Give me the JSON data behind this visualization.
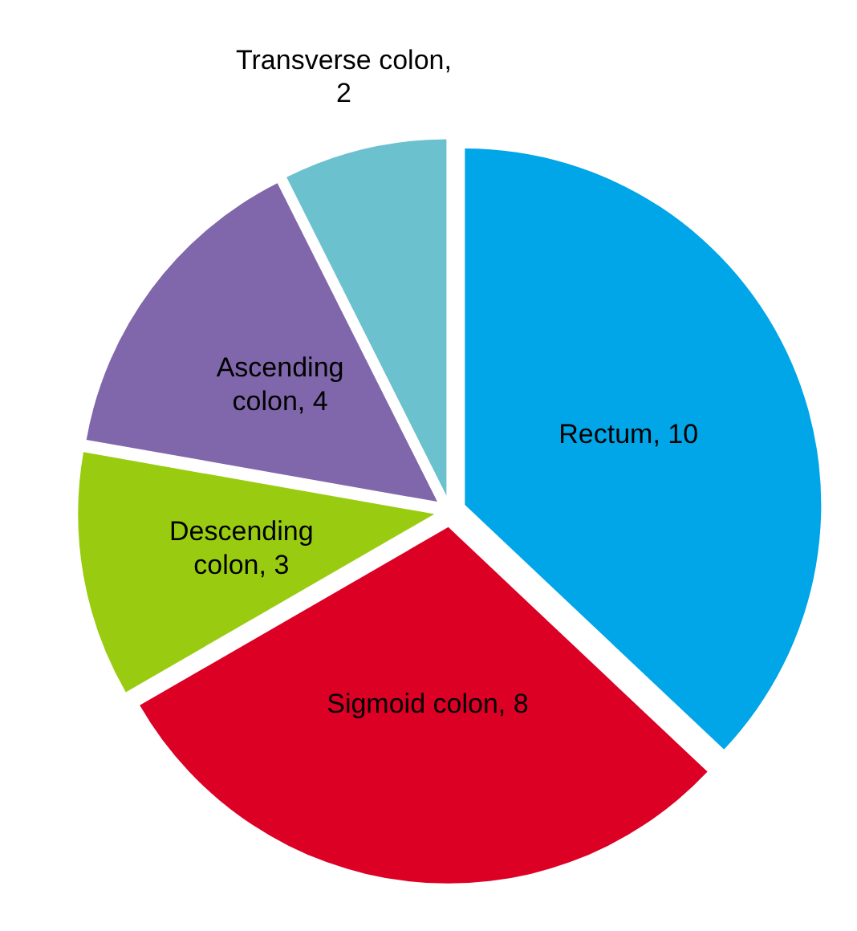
{
  "chart_data": {
    "type": "pie",
    "categories": [
      "Rectum, 10",
      "Sigmoid colon, 8",
      "Descending colon, 3",
      "Ascending colon, 4",
      "Transverse colon, 2"
    ],
    "values": [
      10,
      8,
      3,
      4,
      2
    ],
    "colors": [
      "#00a6e8",
      "#dc0025",
      "#99cc11",
      "#8066aa",
      "#6cc1cf"
    ],
    "legend": false
  }
}
